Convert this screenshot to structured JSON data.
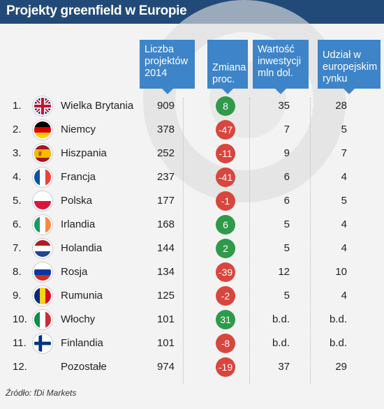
{
  "title": "Projekty greenfield w Europie",
  "headers": {
    "projects": "Liczba\nprojektów\n2014",
    "change": "Zmiana\nproc.",
    "investment": "Wartość\ninwestycji\nmln dol.",
    "share": "Udział w\neuropejskim\nrynku"
  },
  "colors": {
    "title_bar": "#214a78",
    "header": "#3e84c8",
    "positive": "#2f9a4a",
    "negative": "#d8463e"
  },
  "chart_data": {
    "type": "table",
    "title": "Projekty greenfield w Europie",
    "columns": [
      "",
      "",
      "Liczba projektów 2014",
      "Zmiana proc.",
      "Wartość inwestycji mln dol.",
      "Udział w europejskim rynku"
    ],
    "rows": [
      {
        "rank": "1.",
        "country": "Wielka Brytania",
        "flag": "uk-flag-icon",
        "projects": "909",
        "change": 8,
        "change_label": "8",
        "investment": "35",
        "share": "28"
      },
      {
        "rank": "2.",
        "country": "Niemcy",
        "flag": "germany-flag-icon",
        "projects": "378",
        "change": -47,
        "change_label": "-47",
        "investment": "7",
        "share": "5"
      },
      {
        "rank": "3.",
        "country": "Hiszpania",
        "flag": "spain-flag-icon",
        "projects": "252",
        "change": -11,
        "change_label": "-11",
        "investment": "9",
        "share": "7"
      },
      {
        "rank": "4.",
        "country": "Francja",
        "flag": "france-flag-icon",
        "projects": "237",
        "change": -41,
        "change_label": "-41",
        "investment": "6",
        "share": "4"
      },
      {
        "rank": "5.",
        "country": "Polska",
        "flag": "poland-flag-icon",
        "projects": "177",
        "change": -1,
        "change_label": "-1",
        "investment": "6",
        "share": "5"
      },
      {
        "rank": "6.",
        "country": "Irlandia",
        "flag": "ireland-flag-icon",
        "projects": "168",
        "change": 6,
        "change_label": "6",
        "investment": "5",
        "share": "4"
      },
      {
        "rank": "7.",
        "country": "Holandia",
        "flag": "netherlands-flag-icon",
        "projects": "144",
        "change": 2,
        "change_label": "2",
        "investment": "5",
        "share": "4"
      },
      {
        "rank": "8.",
        "country": "Rosja",
        "flag": "russia-flag-icon",
        "projects": "134",
        "change": -39,
        "change_label": "-39",
        "investment": "12",
        "share": "10"
      },
      {
        "rank": "9.",
        "country": "Rumunia",
        "flag": "romania-flag-icon",
        "projects": "125",
        "change": -2,
        "change_label": "-2",
        "investment": "5",
        "share": "4"
      },
      {
        "rank": "10.",
        "country": "Włochy",
        "flag": "italy-flag-icon",
        "projects": "101",
        "change": 31,
        "change_label": "31",
        "investment": "b.d.",
        "share": "b.d."
      },
      {
        "rank": "11.",
        "country": "Finlandia",
        "flag": "finland-flag-icon",
        "projects": "101",
        "change": -8,
        "change_label": "-8",
        "investment": "b.d.",
        "share": "b.d."
      },
      {
        "rank": "12.",
        "country": "Pozostałe",
        "flag": "",
        "projects": "974",
        "change": -19,
        "change_label": "-19",
        "investment": "37",
        "share": "29"
      }
    ]
  },
  "source": "Źródło: fDi Markets"
}
